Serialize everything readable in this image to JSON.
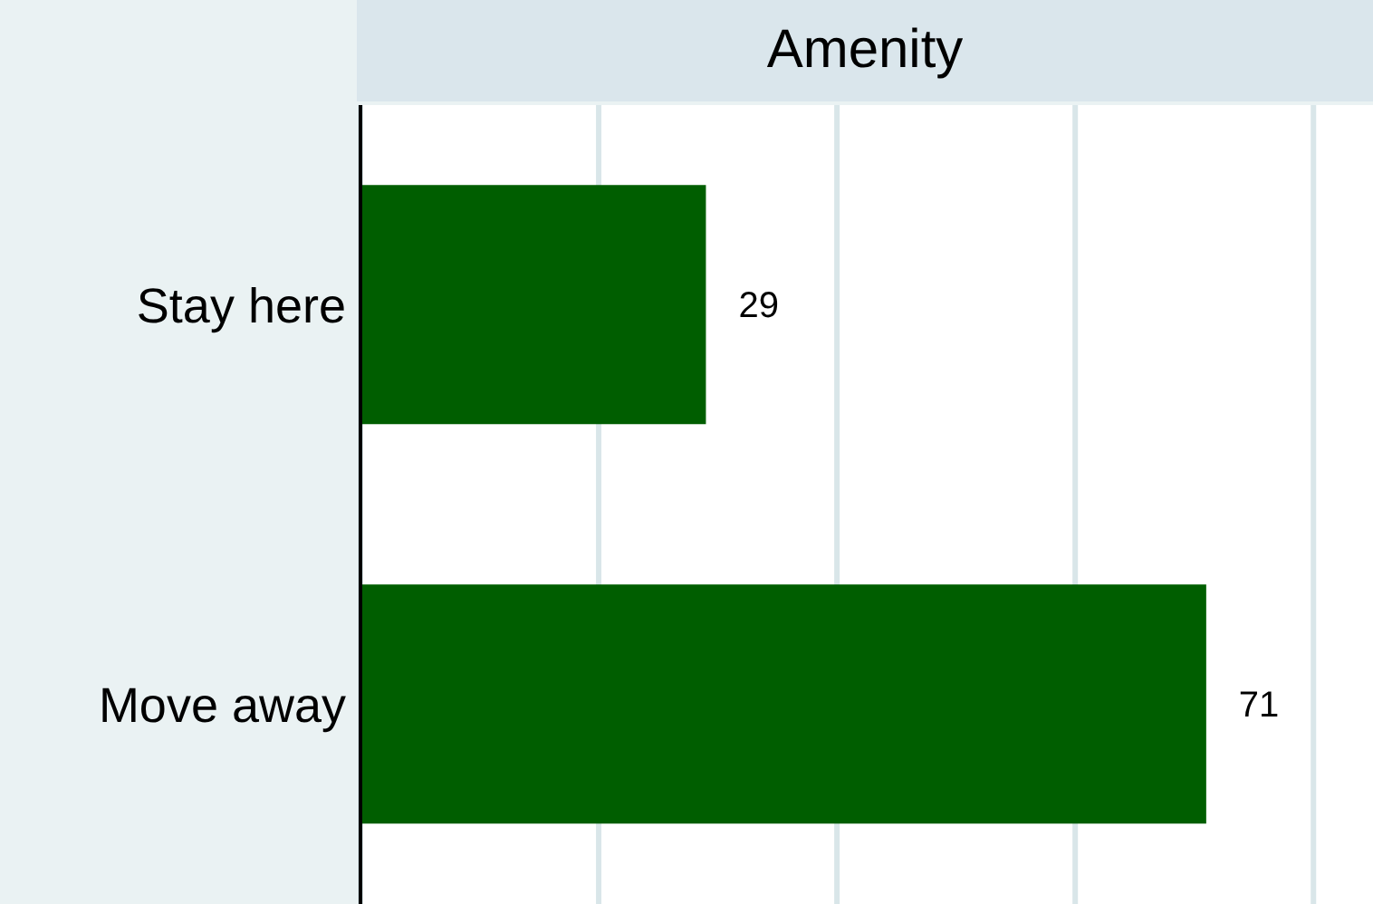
{
  "chart_data": {
    "type": "bar",
    "orientation": "horizontal",
    "title": "Amenity",
    "categories": [
      "Stay here",
      "Move away"
    ],
    "values": [
      29,
      71
    ],
    "color": "#005e00",
    "xlim": [
      0,
      85
    ],
    "xticks": [
      {
        "value": 0,
        "label": null
      },
      {
        "value": 20,
        "label": null
      },
      {
        "value": 40,
        "label": null
      },
      {
        "value": 60,
        "label": null
      },
      {
        "value": 80,
        "label": null
      }
    ],
    "tick_labels": "y",
    "grid": "x",
    "data_labels": true
  }
}
